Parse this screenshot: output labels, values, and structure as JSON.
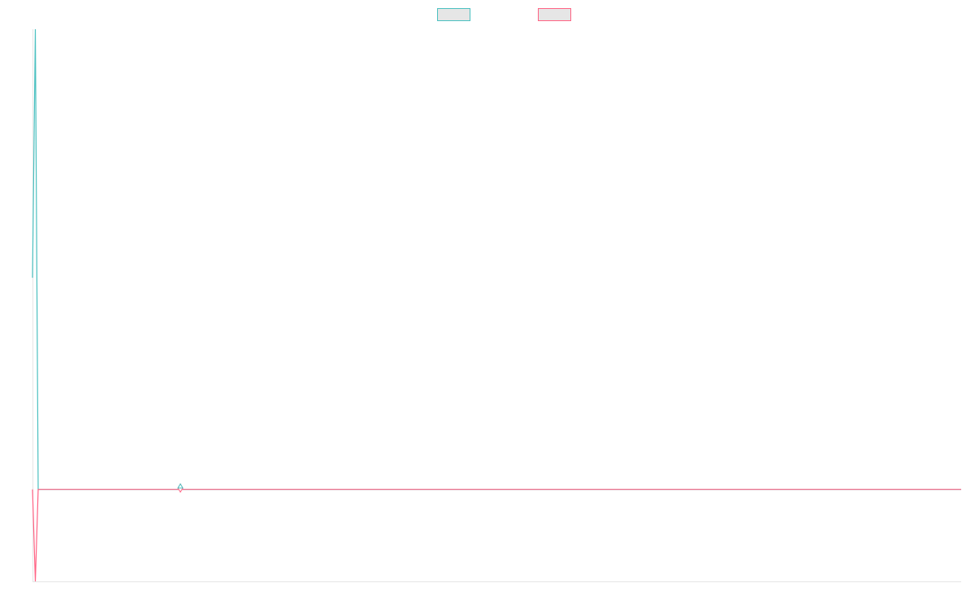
{
  "chart_data": {
    "type": "line",
    "x": [
      0,
      1,
      2,
      327
    ],
    "xlim": [
      0,
      327
    ],
    "ylim": [
      -1,
      5
    ],
    "legend": "top",
    "series": [
      {
        "color": "#4bc0c0",
        "values": [
          2.3,
          5,
          0,
          0
        ]
      },
      {
        "color": "#ff6384",
        "values": [
          0,
          -1,
          0,
          0
        ]
      }
    ]
  }
}
